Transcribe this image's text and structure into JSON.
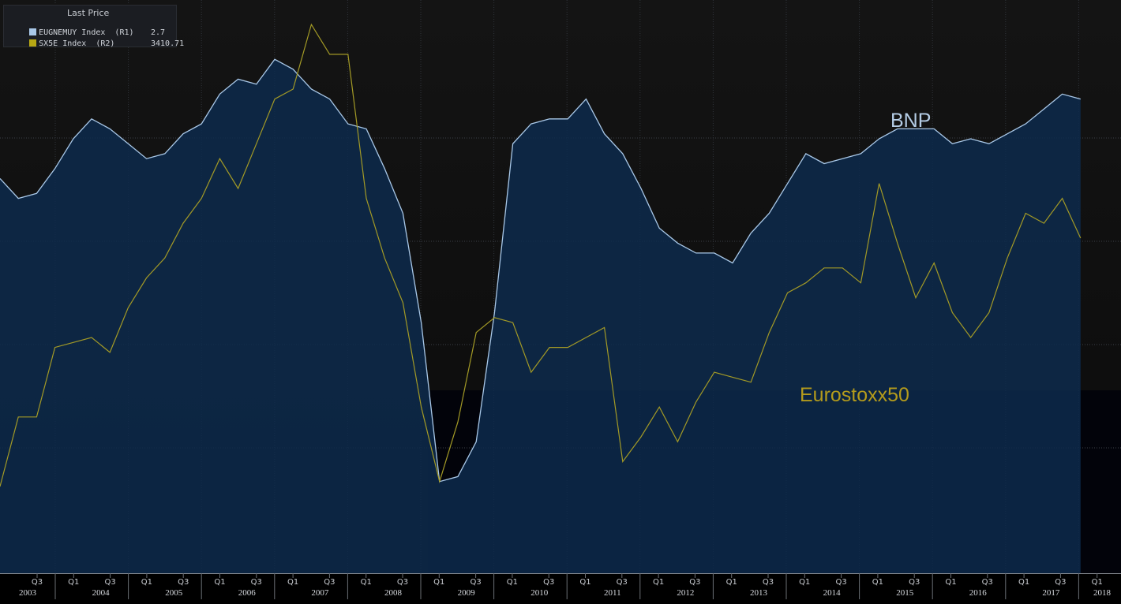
{
  "legend": {
    "title": "Last Price",
    "rows": [
      {
        "label": "EUGNEMUY Index  (R1)",
        "value": "2.7",
        "color": "#a9c8e8"
      },
      {
        "label": "SX5E Index  (R2)",
        "value": "3410.71",
        "color": "#b8a814"
      }
    ]
  },
  "annotations": {
    "bnp": "BNP",
    "eurostoxx": "Eurostoxx50",
    "bnp_color": "#b5cde6",
    "eurostoxx_color": "#b49b1c"
  },
  "chart_data": {
    "type": "area",
    "x_start": "2003 Q2",
    "x_end": "2018 Q1",
    "categories_years": [
      "2003",
      "2004",
      "2005",
      "2006",
      "2007",
      "2008",
      "2009",
      "2010",
      "2011",
      "2012",
      "2013",
      "2014",
      "2015",
      "2016",
      "2017",
      "2018"
    ],
    "quarter_ticks": [
      "Q3",
      "Q1",
      "Q3",
      "Q1",
      "Q3",
      "Q1",
      "Q3",
      "Q1",
      "Q3",
      "Q1",
      "Q3",
      "Q1",
      "Q3",
      "Q1",
      "Q3",
      "Q1",
      "Q3",
      "Q1",
      "Q3",
      "Q1",
      "Q3",
      "Q1",
      "Q3",
      "Q1",
      "Q3",
      "Q1",
      "Q3",
      "Q1",
      "Q3",
      "Q1"
    ],
    "ylim": [
      0,
      1
    ],
    "grid": true,
    "series": [
      {
        "name": "EUGNEMUY Index (R1)",
        "style": "area",
        "color": "#a9c8e8",
        "values": [
          0.72,
          0.68,
          0.69,
          0.74,
          0.8,
          0.84,
          0.82,
          0.79,
          0.76,
          0.77,
          0.81,
          0.83,
          0.89,
          0.92,
          0.91,
          0.96,
          0.94,
          0.9,
          0.88,
          0.83,
          0.82,
          0.74,
          0.65,
          0.43,
          0.11,
          0.12,
          0.19,
          0.45,
          0.79,
          0.83,
          0.84,
          0.84,
          0.88,
          0.81,
          0.77,
          0.7,
          0.62,
          0.59,
          0.57,
          0.57,
          0.55,
          0.61,
          0.65,
          0.71,
          0.77,
          0.75,
          0.76,
          0.77,
          0.8,
          0.82,
          0.82,
          0.82,
          0.79,
          0.8,
          0.79,
          0.81,
          0.83,
          0.86,
          0.89,
          0.88
        ]
      },
      {
        "name": "SX5E Index (R2)",
        "style": "line",
        "color": "#a39a26",
        "values": [
          0.1,
          0.24,
          0.24,
          0.38,
          0.39,
          0.4,
          0.37,
          0.46,
          0.52,
          0.56,
          0.63,
          0.68,
          0.76,
          0.7,
          0.79,
          0.88,
          0.9,
          1.03,
          0.97,
          0.97,
          0.68,
          0.56,
          0.47,
          0.26,
          0.11,
          0.23,
          0.41,
          0.44,
          0.43,
          0.33,
          0.38,
          0.38,
          0.4,
          0.42,
          0.15,
          0.2,
          0.26,
          0.19,
          0.27,
          0.33,
          0.32,
          0.31,
          0.41,
          0.49,
          0.51,
          0.54,
          0.54,
          0.51,
          0.71,
          0.59,
          0.48,
          0.55,
          0.45,
          0.4,
          0.45,
          0.56,
          0.65,
          0.63,
          0.68,
          0.6
        ]
      }
    ]
  }
}
